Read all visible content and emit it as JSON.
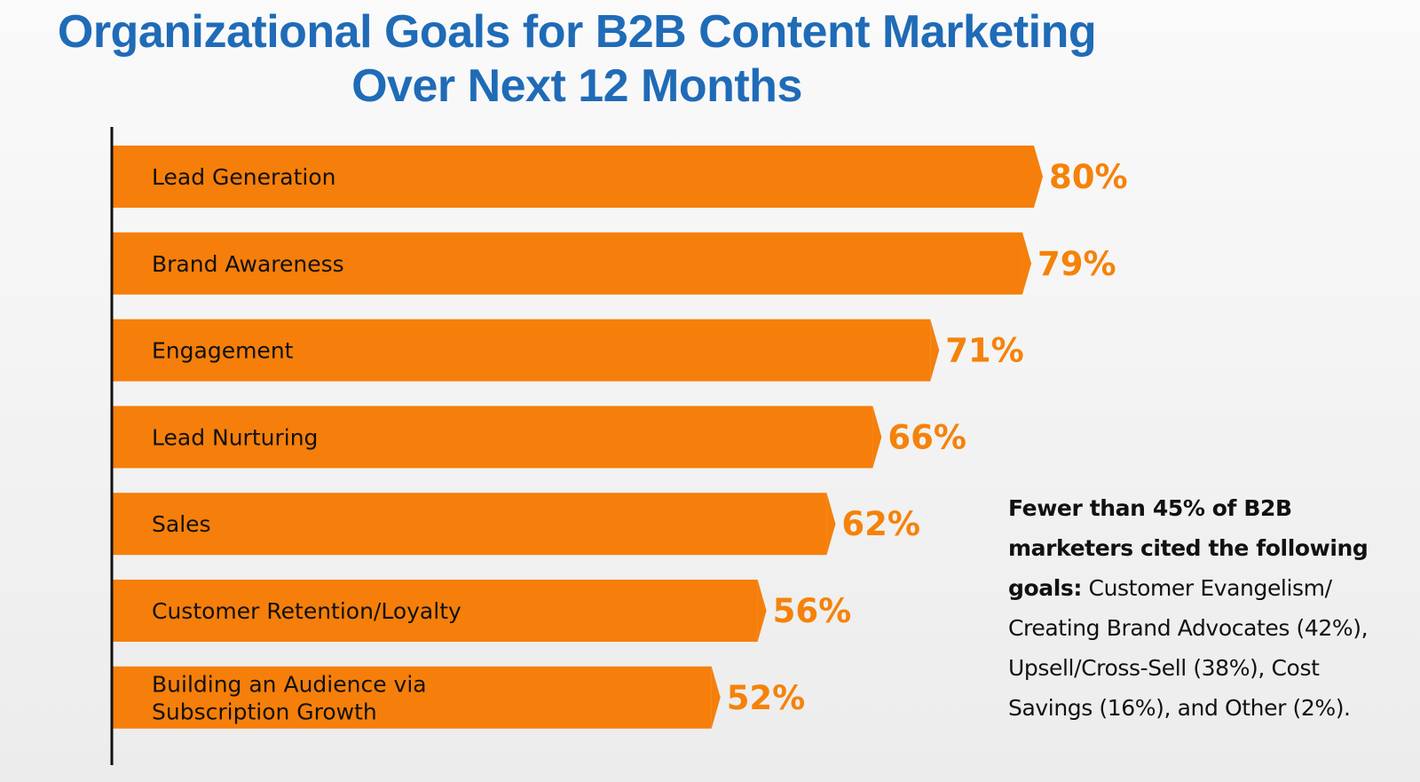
{
  "chart_data": {
    "type": "bar",
    "orientation": "horizontal",
    "title": "Organizational Goals for B2B Content Marketing Over Next 12 Months",
    "title_lines": [
      "Organizational Goals for B2B Content Marketing",
      "Over Next 12 Months"
    ],
    "categories": [
      "Lead Generation",
      "Brand Awareness",
      "Engagement",
      "Lead Nurturing",
      "Sales",
      "Customer Retention/Loyalty",
      "Building an Audience via Subscription Growth"
    ],
    "category_lines": [
      [
        "Lead Generation"
      ],
      [
        "Brand Awareness"
      ],
      [
        "Engagement"
      ],
      [
        "Lead Nurturing"
      ],
      [
        "Sales"
      ],
      [
        "Customer Retention/Loyalty"
      ],
      [
        "Building an Audience via",
        "Subscription Growth"
      ]
    ],
    "values": [
      80,
      79,
      71,
      66,
      62,
      56,
      52
    ],
    "value_labels": [
      "80%",
      "79%",
      "71%",
      "66%",
      "62%",
      "56%",
      "52%"
    ],
    "unit": "%",
    "xlim": [
      0,
      100
    ],
    "grid": false,
    "legend": "none",
    "bar_color": "#f57f0a",
    "value_color": "#f5820a",
    "title_color": "#1f6bb7"
  },
  "note": {
    "bold": "Fewer than 45% of B2B marketers cited the following goals:",
    "text": " Customer Evangelism/ Creating Brand Advocates (42%), Upsell/Cross-Sell (38%), Cost Savings (16%), and Other (2%)."
  }
}
